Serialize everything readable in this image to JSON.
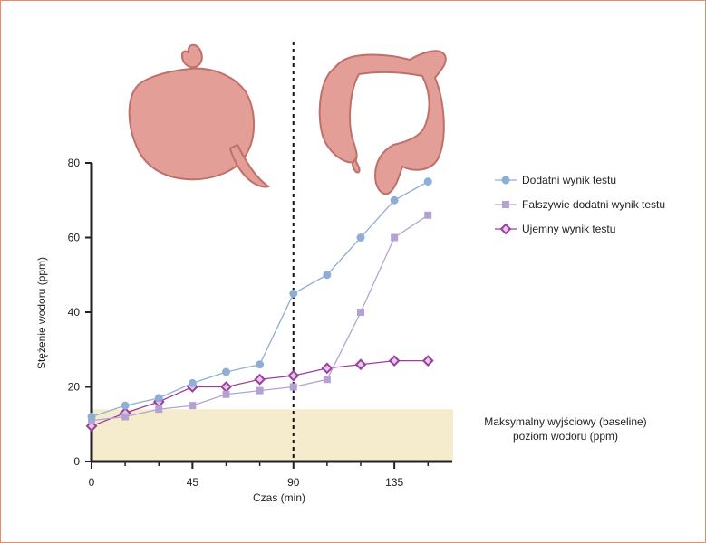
{
  "colors": {
    "positive": "#8faed6",
    "false_positive": "#b5a2d2",
    "negative": "#9b3f9f",
    "negative_fill": "#e3c9e6",
    "baseline_band": "#f5ebcd",
    "axis": "#222222",
    "organ_fill": "#e39e98",
    "organ_stroke": "#c0706b"
  },
  "illustrations": [
    "small-intestine-icon",
    "large-intestine-icon"
  ],
  "chart_data": {
    "type": "line",
    "xlabel": "Czas (min)",
    "ylabel": "Stężenie wodoru (ppm)",
    "xlim": [
      0,
      160
    ],
    "ylim": [
      0,
      80
    ],
    "xticks": [
      0,
      45,
      90,
      135
    ],
    "xticks_minor": [
      15,
      30,
      60,
      75,
      105,
      120,
      150
    ],
    "yticks": [
      0,
      20,
      40,
      60,
      80
    ],
    "grid": false,
    "legend_position": "top-right",
    "vertical_line_x": 90,
    "baseline_band": {
      "y_max": 14,
      "label_line1": "Maksymalny wyjściowy (baseline)",
      "label_line2": "poziom wodoru (ppm)"
    },
    "series": [
      {
        "name": "Dodatni wynik testu",
        "marker": "circle",
        "x": [
          0,
          15,
          30,
          45,
          60,
          75,
          90,
          105,
          120,
          135,
          150
        ],
        "values": [
          12,
          15,
          17,
          21,
          24,
          26,
          45,
          50,
          60,
          70,
          75
        ]
      },
      {
        "name": "Fałszywie dodatni wynik testu",
        "marker": "square",
        "x": [
          0,
          15,
          30,
          45,
          60,
          75,
          90,
          105,
          120,
          135,
          150
        ],
        "values": [
          11,
          12,
          14,
          15,
          18,
          19,
          20,
          22,
          40,
          60,
          66
        ]
      },
      {
        "name": "Ujemny wynik testu",
        "marker": "diamond",
        "x": [
          0,
          15,
          30,
          45,
          60,
          75,
          90,
          105,
          120,
          135,
          150
        ],
        "values": [
          9.5,
          13,
          16,
          20,
          20,
          22,
          23,
          25,
          26,
          27,
          27
        ]
      }
    ]
  }
}
